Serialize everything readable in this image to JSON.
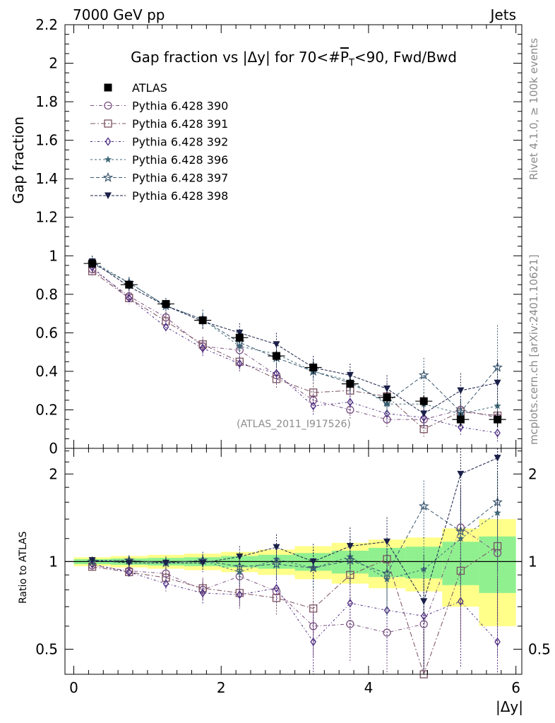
{
  "header": {
    "energy_label": "7000 GeV pp",
    "category_label": "Jets"
  },
  "side_labels": {
    "rivet": "Rivet 4.1.0, ≥ 100k events",
    "mcplots": "mcplots.cern.ch [arXiv:2401.10621]"
  },
  "chart_data": [
    {
      "type": "line",
      "title": "Gap fraction vs |Δy| for 70<#P̅T<90, Fwd/Bwd",
      "title_parts": {
        "pre": "Gap fraction vs |",
        "delta": "Δ",
        "mid": "y| for 70<#",
        "p": "P",
        "sub": "T",
        "post": "<90, Fwd/Bwd"
      },
      "ylabel": "Gap fraction",
      "xlabel": "|Δy|",
      "xlim": [
        -0.12,
        6.08
      ],
      "ylim": [
        0,
        2.2
      ],
      "yticks": [
        "0",
        "0.2",
        "0.4",
        "0.6",
        "0.8",
        "1",
        "1.2",
        "1.4",
        "1.6",
        "1.8",
        "2",
        "2.2"
      ],
      "xticks": [
        "0",
        "2",
        "4",
        "6"
      ],
      "x": [
        0.25,
        0.75,
        1.25,
        1.75,
        2.25,
        2.75,
        3.25,
        3.75,
        4.25,
        4.75,
        5.25,
        5.75
      ],
      "watermark": "(ATLAS_2011_I917526)",
      "reference": {
        "name": "ATLAS",
        "values": [
          0.96,
          0.85,
          0.75,
          0.665,
          0.575,
          0.48,
          0.42,
          0.335,
          0.265,
          0.245,
          0.15,
          0.15
        ],
        "errors": [
          0.02,
          0.02,
          0.02,
          0.02,
          0.025,
          0.025,
          0.03,
          0.03,
          0.03,
          0.03,
          0.035,
          0.04
        ]
      },
      "series": [
        {
          "name": "Pythia 6.428 390",
          "marker": "circle-open",
          "color": "#7a5080",
          "values": [
            0.93,
            0.79,
            0.68,
            0.53,
            0.51,
            0.38,
            0.25,
            0.2,
            0.15,
            0.15,
            0.2,
            0.16
          ],
          "errors": [
            0.03,
            0.03,
            0.03,
            0.04,
            0.04,
            0.05,
            0.05,
            0.05,
            0.04,
            0.05,
            0.05,
            0.06
          ]
        },
        {
          "name": "Pythia 6.428 391",
          "marker": "square-open",
          "color": "#7a5060",
          "values": [
            0.92,
            0.78,
            0.66,
            0.54,
            0.45,
            0.36,
            0.29,
            0.3,
            0.27,
            0.1,
            0.19,
            0.17
          ],
          "errors": [
            0.03,
            0.03,
            0.03,
            0.04,
            0.04,
            0.05,
            0.05,
            0.06,
            0.07,
            0.04,
            0.05,
            0.06
          ]
        },
        {
          "name": "Pythia 6.428 392",
          "marker": "diamond-open",
          "color": "#4b2a80",
          "values": [
            0.94,
            0.78,
            0.63,
            0.52,
            0.44,
            0.39,
            0.22,
            0.24,
            0.18,
            0.16,
            0.11,
            0.08
          ],
          "errors": [
            0.03,
            0.03,
            0.03,
            0.04,
            0.04,
            0.05,
            0.05,
            0.05,
            0.05,
            0.05,
            0.04,
            0.05
          ]
        },
        {
          "name": "Pythia 6.428 396",
          "marker": "star-filled",
          "color": "#3e6a78",
          "values": [
            0.97,
            0.86,
            0.74,
            0.67,
            0.53,
            0.49,
            0.4,
            0.35,
            0.23,
            0.23,
            0.18,
            0.22
          ],
          "errors": [
            0.03,
            0.03,
            0.04,
            0.05,
            0.05,
            0.06,
            0.06,
            0.06,
            0.06,
            0.06,
            0.07,
            0.08
          ]
        },
        {
          "name": "Pythia 6.428 397",
          "marker": "star-open",
          "color": "#3a5870",
          "values": [
            0.96,
            0.86,
            0.74,
            0.67,
            0.55,
            0.47,
            0.4,
            0.34,
            0.24,
            0.38,
            0.19,
            0.42
          ],
          "errors": [
            0.03,
            0.03,
            0.04,
            0.05,
            0.05,
            0.06,
            0.06,
            0.06,
            0.07,
            0.09,
            0.08,
            0.22
          ]
        },
        {
          "name": "Pythia 6.428 398",
          "marker": "triangle-down-filled",
          "color": "#1a2048",
          "values": [
            0.97,
            0.84,
            0.74,
            0.66,
            0.6,
            0.54,
            0.42,
            0.38,
            0.31,
            0.18,
            0.3,
            0.34
          ],
          "errors": [
            0.03,
            0.03,
            0.04,
            0.04,
            0.05,
            0.06,
            0.06,
            0.06,
            0.07,
            0.08,
            0.09,
            0.12
          ]
        }
      ]
    },
    {
      "type": "line",
      "title": "Ratio to ATLAS",
      "ylabel": "Ratio to ATLAS",
      "xlabel": "|Δy|",
      "yscale": "log",
      "xlim": [
        -0.12,
        6.08
      ],
      "ylim": [
        0.41,
        2.45
      ],
      "yticks": [
        {
          "value": 0.5,
          "label": "0.5"
        },
        {
          "value": 1,
          "label": "1"
        },
        {
          "value": 2,
          "label": "2"
        }
      ],
      "xticks": [
        "0",
        "2",
        "4",
        "6"
      ],
      "x": [
        0.25,
        0.75,
        1.25,
        1.75,
        2.25,
        2.75,
        3.25,
        3.75,
        4.25,
        4.75,
        5.25,
        5.75
      ],
      "band_inner_halfwidth": [
        0.02,
        0.025,
        0.03,
        0.035,
        0.045,
        0.055,
        0.07,
        0.09,
        0.115,
        0.125,
        0.17,
        0.22
      ],
      "band_outer_halfwidth": [
        0.035,
        0.045,
        0.055,
        0.065,
        0.08,
        0.1,
        0.13,
        0.16,
        0.19,
        0.21,
        0.3,
        0.4
      ],
      "series": [
        {
          "name": "Pythia 6.428 390",
          "values": [
            0.97,
            0.93,
            0.91,
            0.8,
            0.89,
            0.79,
            0.6,
            0.61,
            0.57,
            0.61,
            1.31,
            1.07
          ],
          "errors": [
            0.03,
            0.04,
            0.05,
            0.07,
            0.08,
            0.1,
            0.13,
            0.16,
            0.2,
            0.23,
            0.5,
            0.6
          ]
        },
        {
          "name": "Pythia 6.428 391",
          "values": [
            0.96,
            0.92,
            0.88,
            0.81,
            0.78,
            0.75,
            0.69,
            0.9,
            1.02,
            0.41,
            0.93,
            1.13
          ],
          "errors": [
            0.03,
            0.04,
            0.05,
            0.07,
            0.08,
            0.1,
            0.13,
            0.18,
            0.28,
            0.17,
            0.4,
            0.5
          ]
        },
        {
          "name": "Pythia 6.428 392",
          "values": [
            0.98,
            0.92,
            0.84,
            0.78,
            0.77,
            0.81,
            0.53,
            0.72,
            0.68,
            0.65,
            0.73,
            0.53
          ],
          "errors": [
            0.03,
            0.04,
            0.05,
            0.07,
            0.08,
            0.1,
            0.13,
            0.16,
            0.2,
            0.23,
            0.3,
            0.35
          ]
        },
        {
          "name": "Pythia 6.428 396",
          "values": [
            1.01,
            1.01,
            0.99,
            1.01,
            0.92,
            1.02,
            0.95,
            1.04,
            0.87,
            0.94,
            1.2,
            1.47
          ],
          "errors": [
            0.03,
            0.04,
            0.05,
            0.07,
            0.09,
            0.12,
            0.15,
            0.18,
            0.23,
            0.27,
            0.45,
            0.55
          ]
        },
        {
          "name": "Pythia 6.428 397",
          "values": [
            1.0,
            1.01,
            0.99,
            1.01,
            0.96,
            0.98,
            0.95,
            1.01,
            0.91,
            1.55,
            1.27,
            1.6
          ],
          "errors": [
            0.03,
            0.04,
            0.05,
            0.07,
            0.09,
            0.12,
            0.15,
            0.18,
            0.25,
            0.35,
            0.5,
            0.8
          ]
        },
        {
          "name": "Pythia 6.428 398",
          "values": [
            1.01,
            0.99,
            0.99,
            0.99,
            1.04,
            1.12,
            1.0,
            1.13,
            1.17,
            0.73,
            2.0,
            2.27
          ],
          "errors": [
            0.03,
            0.04,
            0.05,
            0.07,
            0.09,
            0.12,
            0.15,
            0.18,
            0.25,
            0.32,
            0.7,
            0.8
          ]
        }
      ]
    }
  ]
}
